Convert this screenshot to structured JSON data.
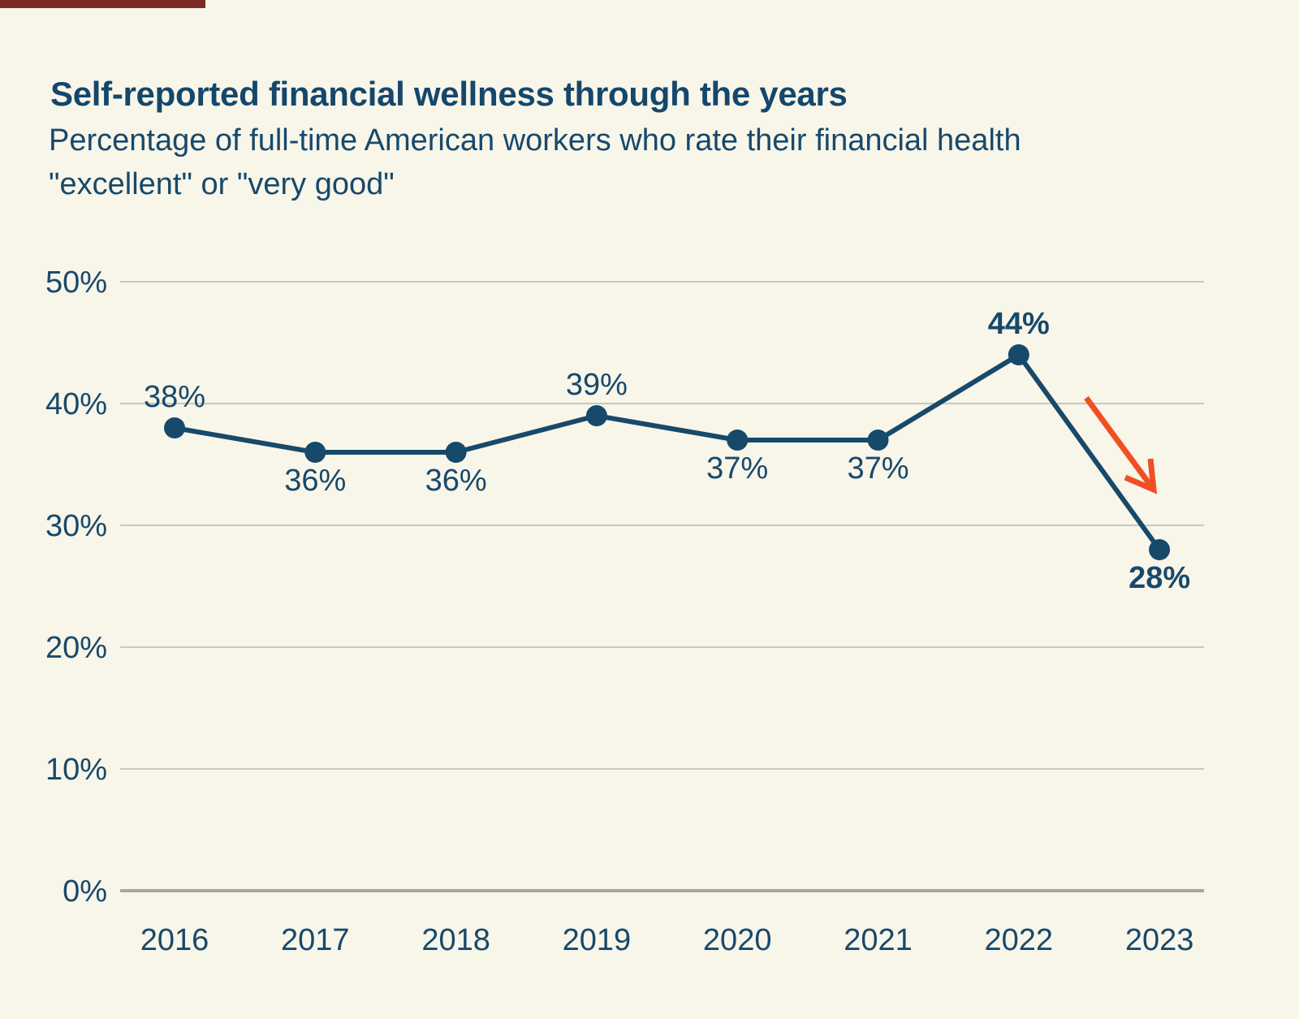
{
  "page": {
    "background": "#f8f5e9",
    "progress_bar": {
      "color": "#7d2b25"
    }
  },
  "chart_data": {
    "type": "line",
    "title": "Self-reported financial wellness through the years",
    "subtitle": "Percentage of full-time American workers who rate their financial health \"excellent\" or \"very good\"",
    "subtitle_lines": [
      "Percentage of full-time American workers who rate their financial health",
      "\"excellent\" or \"very good\""
    ],
    "categories": [
      "2016",
      "2017",
      "2018",
      "2019",
      "2020",
      "2021",
      "2022",
      "2023"
    ],
    "values": [
      38,
      36,
      36,
      39,
      37,
      37,
      44,
      28
    ],
    "data_labels": [
      "38%",
      "36%",
      "36%",
      "39%",
      "37%",
      "37%",
      "44%",
      "28%"
    ],
    "label_placement": [
      "above",
      "below",
      "below",
      "above",
      "below",
      "below",
      "above",
      "below"
    ],
    "label_bold": [
      false,
      false,
      false,
      false,
      false,
      false,
      true,
      true
    ],
    "y_tick_labels": [
      "0%",
      "10%",
      "20%",
      "30%",
      "40%",
      "50%"
    ],
    "y_tick_values": [
      0,
      10,
      20,
      30,
      40,
      50
    ],
    "ylim": [
      0,
      50
    ],
    "xlabel": "",
    "ylabel": "",
    "grid": "horizontal",
    "legend": "none",
    "annotation": {
      "shape": "down-right-arrow",
      "meaning": "sharp decline from 44% in 2022 to 28% in 2023"
    },
    "colors": {
      "line": "#17496b",
      "point": "#17496b",
      "text": "#17496b",
      "gridline": "#c8c8c2",
      "baseline": "#a7a7a0",
      "arrow": "#f04f24",
      "background": "#f8f5e9"
    }
  }
}
